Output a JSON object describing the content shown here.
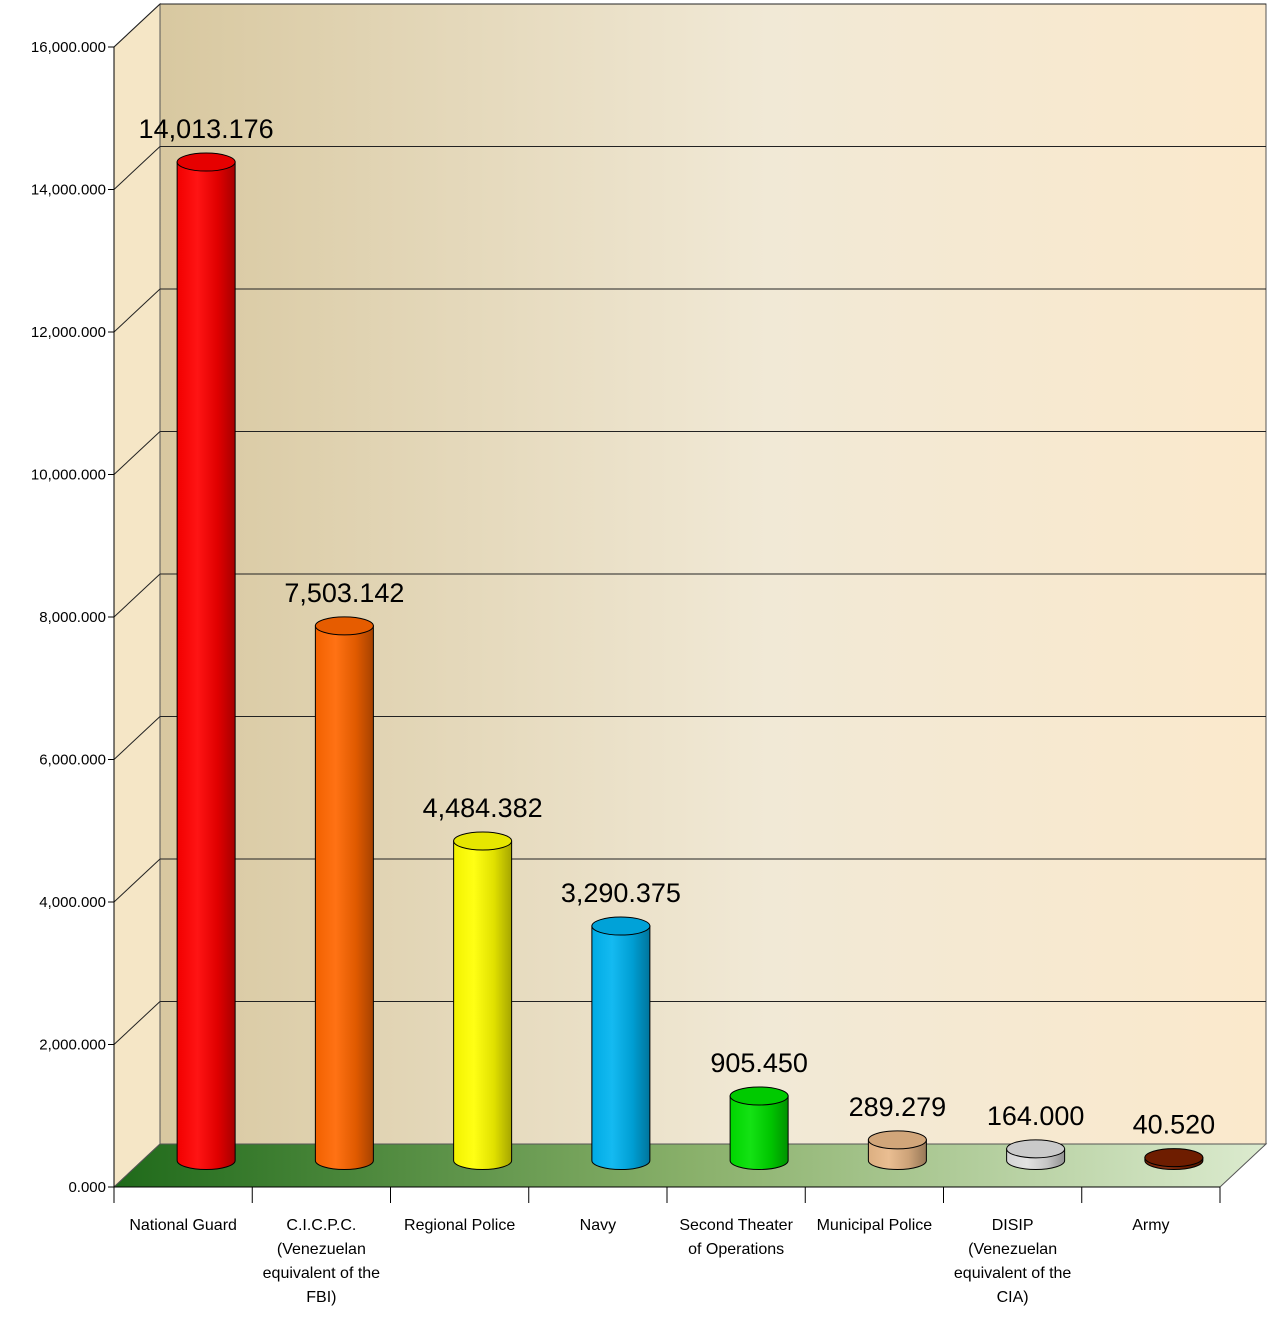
{
  "chart_data": {
    "type": "bar",
    "title": "",
    "xlabel": "",
    "ylabel": "",
    "ylim": [
      0,
      16000
    ],
    "y_ticks": [
      0,
      2000,
      4000,
      6000,
      8000,
      10000,
      12000,
      14000,
      16000
    ],
    "y_tick_labels": [
      "0.000",
      "2,000.000",
      "4,000.000",
      "6,000.000",
      "8,000.000",
      "10,000.000",
      "12,000.000",
      "14,000.000",
      "16,000.000"
    ],
    "grid": true,
    "legend": "none",
    "categories": [
      [
        "National Guard"
      ],
      [
        "C.I.C.P.C.",
        "(Venezuelan",
        "equivalent of the",
        "FBI)"
      ],
      [
        "Regional Police"
      ],
      [
        "Navy"
      ],
      [
        "Second Theater",
        "of Operations"
      ],
      [
        "Municipal Police"
      ],
      [
        "DISIP",
        "(Venezuelan",
        "equivalent of the",
        "CIA)"
      ],
      [
        "Army"
      ]
    ],
    "values": [
      14013.176,
      7503.142,
      4484.382,
      3290.375,
      905.45,
      289.279,
      164.0,
      40.52
    ],
    "data_labels": [
      "14,013.176",
      "7,503.142",
      "4,484.382",
      "3,290.375",
      "905.450",
      "289.279",
      "164.000",
      "40.520"
    ],
    "colors": [
      "#ff0000",
      "#ff6600",
      "#ffff00",
      "#00b4f0",
      "#00e000",
      "#e8b888",
      "#e0e0e0",
      "#7a2000"
    ]
  }
}
